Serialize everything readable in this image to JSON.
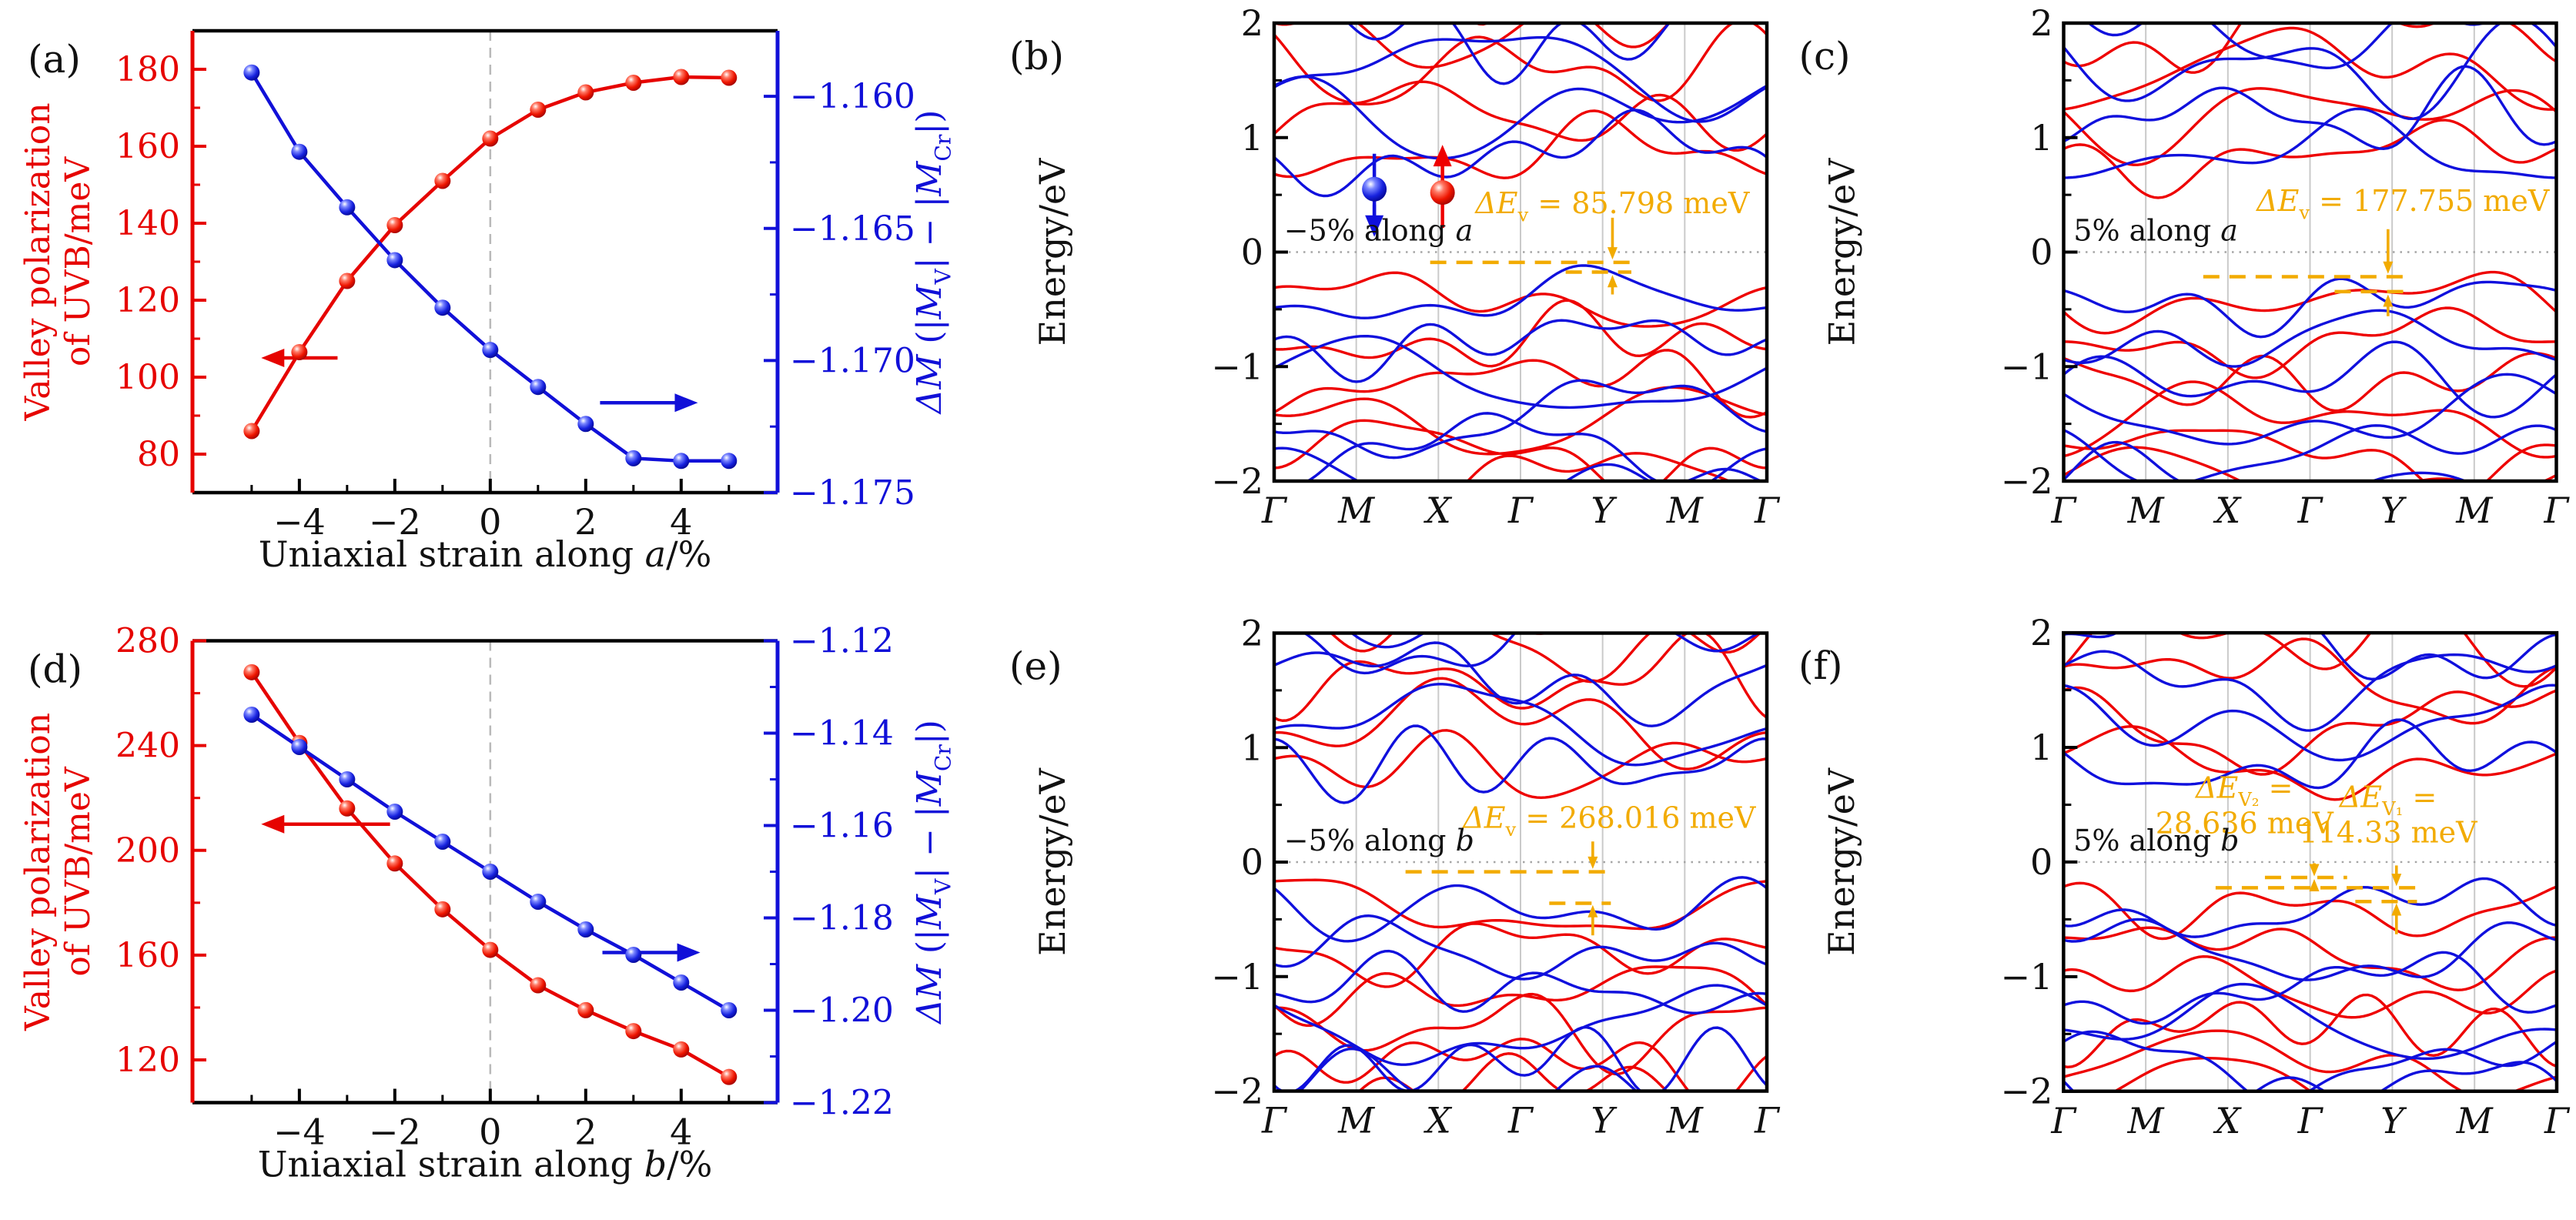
{
  "chart_data": [
    {
      "type": "line-dual-axis",
      "panel": "(a)",
      "x_axis": {
        "label_parts": [
          {
            "t": "Uniaxial strain along "
          },
          {
            "t": "a",
            "i": true
          },
          {
            "t": "/%"
          }
        ],
        "min": -6.24,
        "max": 6.02,
        "major_ticks": [
          {
            "v": -4,
            "l": "−4"
          },
          {
            "v": -2,
            "l": "−2"
          },
          {
            "v": 0,
            "l": "0"
          },
          {
            "v": 2,
            "l": "2"
          },
          {
            "v": 4,
            "l": "4"
          }
        ],
        "minor_ticks": [
          -5,
          -3,
          -1,
          1,
          3,
          5
        ],
        "dashed_zero": 0
      },
      "left_axis": {
        "title_lines": [
          "Valley polarization",
          "of UVB/meV"
        ],
        "color": "#e60300",
        "min": 70,
        "max": 190,
        "major_ticks": [
          {
            "v": 80,
            "l": "80"
          },
          {
            "v": 100,
            "l": "100"
          },
          {
            "v": 120,
            "l": "120"
          },
          {
            "v": 140,
            "l": "140"
          },
          {
            "v": 160,
            "l": "160"
          },
          {
            "v": 180,
            "l": "180"
          }
        ],
        "minor_ticks": [
          90,
          110,
          130,
          150,
          170
        ]
      },
      "right_axis": {
        "title_parts": [
          {
            "t": "ΔM",
            "i": true
          },
          {
            "t": " (|"
          },
          {
            "t": "M",
            "i": true
          },
          {
            "t": "V",
            "sub": true
          },
          {
            "t": "| − |"
          },
          {
            "t": "M",
            "i": true
          },
          {
            "t": "Cr",
            "sub": true
          },
          {
            "t": "|)"
          }
        ],
        "color": "#1110d8",
        "min": -1.175,
        "max": -1.15752,
        "major_ticks": [
          {
            "v": -1.16,
            "l": "−1.160"
          },
          {
            "v": -1.165,
            "l": "−1.165"
          },
          {
            "v": -1.17,
            "l": "−1.170"
          },
          {
            "v": -1.175,
            "l": "−1.175"
          }
        ],
        "minor_ticks": [
          -1.1625,
          -1.1675,
          -1.1725
        ]
      },
      "strain": [
        -5,
        -4,
        -3,
        -2,
        -1,
        0,
        1,
        2,
        3,
        4,
        5
      ],
      "series": [
        {
          "name": "Valley polarization of UVB",
          "axis": "left",
          "color": "#e60300",
          "values": [
            86,
            106.5,
            125,
            139.5,
            151,
            162,
            169.5,
            174,
            176.5,
            178,
            177.8
          ]
        },
        {
          "name": "ΔM (|MV| − |MCr|)",
          "axis": "right",
          "color": "#1110d8",
          "values": [
            -1.1591,
            -1.1621,
            -1.1642,
            -1.1662,
            -1.168,
            -1.1696,
            -1.171,
            -1.1724,
            -1.1737,
            -1.1738,
            -1.1738
          ]
        }
      ],
      "arrows": [
        {
          "axis": "left",
          "color": "#e60300",
          "y": 105,
          "x1": -3.2,
          "x2": -4.8
        },
        {
          "axis": "right",
          "color": "#1110d8",
          "y": -1.1716,
          "x1": 2.3,
          "x2": 4.35
        }
      ]
    },
    {
      "type": "band-structure",
      "panel": "(b)",
      "ylabel": "Energy/eV",
      "ymin": -2,
      "ymax": 2,
      "yticks": [
        {
          "v": -2,
          "l": "−2"
        },
        {
          "v": -1,
          "l": "−1"
        },
        {
          "v": 0,
          "l": "0"
        },
        {
          "v": 1,
          "l": "1"
        },
        {
          "v": 2,
          "l": "2"
        }
      ],
      "minor_yticks": [
        -1.5,
        -0.5,
        0.5,
        1.5
      ],
      "kpath": [
        "Γ",
        "M",
        "X",
        "Γ",
        "Y",
        "M",
        "Γ"
      ],
      "tag_parts": [
        {
          "t": "−5% along "
        },
        {
          "t": "a",
          "i": true
        }
      ],
      "spin_markers": [
        {
          "k": 1.22,
          "E": 0.55,
          "color": "blue",
          "dir": "down"
        },
        {
          "k": 2.05,
          "E": 0.52,
          "color": "red",
          "dir": "up"
        }
      ],
      "gold": {
        "color": "#f2ab00",
        "labels": [
          {
            "parts": [
              {
                "t": "ΔE",
                "i": true
              },
              {
                "t": "v",
                "sub": true
              },
              {
                "t": " = 85.798 meV"
              }
            ],
            "k": 2.45,
            "E": 0.34,
            "anchor": "start"
          }
        ],
        "dashes": [
          {
            "k1": 1.9,
            "k2": 4.35,
            "E": -0.09
          },
          {
            "k1": 3.55,
            "k2": 4.35,
            "E": -0.175
          }
        ],
        "arrows": [
          {
            "k": 4.12,
            "E1": 0.3,
            "E2": -0.065
          },
          {
            "k": 4.12,
            "E1": -0.37,
            "E2": -0.2
          }
        ]
      }
    },
    {
      "type": "band-structure",
      "panel": "(c)",
      "ylabel": "Energy/eV",
      "ymin": -2,
      "ymax": 2,
      "yticks": [
        {
          "v": -2,
          "l": "−2"
        },
        {
          "v": -1,
          "l": "−1"
        },
        {
          "v": 0,
          "l": "0"
        },
        {
          "v": 1,
          "l": "1"
        },
        {
          "v": 2,
          "l": "2"
        }
      ],
      "minor_yticks": [
        -1.5,
        -0.5,
        0.5,
        1.5
      ],
      "kpath": [
        "Γ",
        "M",
        "X",
        "Γ",
        "Y",
        "M",
        "Γ"
      ],
      "tag_parts": [
        {
          "t": "5% along "
        },
        {
          "t": "a",
          "i": true
        }
      ],
      "spin_markers": [],
      "gold": {
        "color": "#f2ab00",
        "labels": [
          {
            "parts": [
              {
                "t": "ΔE",
                "i": true
              },
              {
                "t": "v",
                "sub": true
              },
              {
                "t": " = 177.755 meV"
              }
            ],
            "k": 2.35,
            "E": 0.36,
            "anchor": "start"
          }
        ],
        "dashes": [
          {
            "k1": 1.7,
            "k2": 4.15,
            "E": -0.215
          },
          {
            "k1": 3.3,
            "k2": 4.15,
            "E": -0.345
          }
        ],
        "arrows": [
          {
            "k": 3.95,
            "E1": 0.2,
            "E2": -0.19
          },
          {
            "k": 3.95,
            "E1": -0.56,
            "E2": -0.37
          }
        ]
      }
    },
    {
      "type": "line-dual-axis",
      "panel": "(d)",
      "x_axis": {
        "label_parts": [
          {
            "t": "Uniaxial strain along "
          },
          {
            "t": "b",
            "i": true
          },
          {
            "t": "/%"
          }
        ],
        "min": -6.24,
        "max": 6.02,
        "major_ticks": [
          {
            "v": -4,
            "l": "−4"
          },
          {
            "v": -2,
            "l": "−2"
          },
          {
            "v": 0,
            "l": "0"
          },
          {
            "v": 2,
            "l": "2"
          },
          {
            "v": 4,
            "l": "4"
          }
        ],
        "minor_ticks": [
          -5,
          -3,
          -1,
          1,
          3,
          5
        ],
        "dashed_zero": 0
      },
      "left_axis": {
        "title_lines": [
          "Valley polarization",
          "of UVB/meV"
        ],
        "color": "#e60300",
        "min": 103.7,
        "max": 280,
        "major_ticks": [
          {
            "v": 120,
            "l": "120"
          },
          {
            "v": 160,
            "l": "160"
          },
          {
            "v": 200,
            "l": "200"
          },
          {
            "v": 240,
            "l": "240"
          },
          {
            "v": 280,
            "l": "280"
          }
        ],
        "minor_ticks": [
          140,
          180,
          220,
          260
        ]
      },
      "right_axis": {
        "title_parts": [
          {
            "t": "ΔM",
            "i": true
          },
          {
            "t": " (|"
          },
          {
            "t": "M",
            "i": true
          },
          {
            "t": "V",
            "sub": true
          },
          {
            "t": "| − |"
          },
          {
            "t": "M",
            "i": true
          },
          {
            "t": "Cr",
            "sub": true
          },
          {
            "t": "|)"
          }
        ],
        "color": "#1110d8",
        "min": -1.22,
        "max": -1.12,
        "major_ticks": [
          {
            "v": -1.12,
            "l": "−1.12"
          },
          {
            "v": -1.14,
            "l": "−1.14"
          },
          {
            "v": -1.16,
            "l": "−1.16"
          },
          {
            "v": -1.18,
            "l": "−1.18"
          },
          {
            "v": -1.2,
            "l": "−1.20"
          },
          {
            "v": -1.22,
            "l": "−1.22"
          }
        ],
        "minor_ticks": [
          -1.13,
          -1.15,
          -1.17,
          -1.19,
          -1.21
        ]
      },
      "strain": [
        -5,
        -4,
        -3,
        -2,
        -1,
        0,
        1,
        2,
        3,
        4,
        5
      ],
      "series": [
        {
          "name": "Valley polarization of UVB",
          "axis": "left",
          "color": "#e60300",
          "values": [
            268,
            241,
            216,
            195,
            177.5,
            162,
            148.5,
            139,
            131,
            124,
            113.5
          ]
        },
        {
          "name": "ΔM (|MV| − |MCr|)",
          "axis": "right",
          "color": "#1110d8",
          "values": [
            -1.136,
            -1.143,
            -1.15,
            -1.157,
            -1.1635,
            -1.17,
            -1.1765,
            -1.1825,
            -1.188,
            -1.194,
            -1.2
          ]
        }
      ],
      "arrows": [
        {
          "axis": "left",
          "color": "#e60300",
          "y": 210,
          "x1": -2.1,
          "x2": -4.8
        },
        {
          "axis": "right",
          "color": "#1110d8",
          "y": -1.1875,
          "x1": 2.35,
          "x2": 4.4
        }
      ]
    },
    {
      "type": "band-structure",
      "panel": "(e)",
      "ylabel": "Energy/eV",
      "ymin": -2,
      "ymax": 2,
      "yticks": [
        {
          "v": -2,
          "l": "−2"
        },
        {
          "v": -1,
          "l": "−1"
        },
        {
          "v": 0,
          "l": "0"
        },
        {
          "v": 1,
          "l": "1"
        },
        {
          "v": 2,
          "l": "2"
        }
      ],
      "minor_yticks": [
        -1.5,
        -0.5,
        0.5,
        1.5
      ],
      "kpath": [
        "Γ",
        "M",
        "X",
        "Γ",
        "Y",
        "M",
        "Γ"
      ],
      "tag_parts": [
        {
          "t": "−5% along "
        },
        {
          "t": "b",
          "i": true
        }
      ],
      "spin_markers": [],
      "gold": {
        "color": "#f2ab00",
        "labels": [
          {
            "parts": [
              {
                "t": "ΔE",
                "i": true
              },
              {
                "t": "v",
                "sub": true
              },
              {
                "t": " = 268.016 meV"
              }
            ],
            "k": 2.3,
            "E": 0.3,
            "anchor": "start"
          }
        ],
        "dashes": [
          {
            "k1": 1.6,
            "k2": 4.1,
            "E": -0.085
          },
          {
            "k1": 3.35,
            "k2": 4.1,
            "E": -0.36
          }
        ],
        "arrows": [
          {
            "k": 3.88,
            "E1": 0.18,
            "E2": -0.06
          },
          {
            "k": 3.88,
            "E1": -0.64,
            "E2": -0.375
          }
        ]
      }
    },
    {
      "type": "band-structure",
      "panel": "(f)",
      "ylabel": "Energy/eV",
      "ymin": -2,
      "ymax": 2,
      "yticks": [
        {
          "v": -2,
          "l": "−2"
        },
        {
          "v": -1,
          "l": "−1"
        },
        {
          "v": 0,
          "l": "0"
        },
        {
          "v": 1,
          "l": "1"
        },
        {
          "v": 2,
          "l": "2"
        }
      ],
      "minor_yticks": [
        -1.5,
        -0.5,
        0.5,
        1.5
      ],
      "kpath": [
        "Γ",
        "M",
        "X",
        "Γ",
        "Y",
        "M",
        "Γ"
      ],
      "tag_parts": [
        {
          "t": "5% along "
        },
        {
          "t": "b",
          "i": true
        }
      ],
      "spin_markers": [],
      "gold": {
        "color": "#f2ab00",
        "labels": [
          {
            "parts": [
              {
                "t": "ΔE",
                "i": true
              },
              {
                "t": "V₂",
                "sub": true
              },
              {
                "t": " ="
              }
            ],
            "line2": "28.636 meV",
            "k": 2.2,
            "E": 0.56,
            "anchor": "middle"
          },
          {
            "parts": [
              {
                "t": "ΔE",
                "i": true
              },
              {
                "t": "V₁",
                "sub": true
              },
              {
                "t": " ="
              }
            ],
            "line2": "114.33 meV",
            "k": 3.95,
            "E": 0.48,
            "anchor": "middle"
          }
        ],
        "dashes": [
          {
            "k1": 2.45,
            "k2": 3.45,
            "E": -0.135
          },
          {
            "k1": 1.85,
            "k2": 4.3,
            "E": -0.225
          },
          {
            "k1": 3.55,
            "k2": 4.3,
            "E": -0.345
          }
        ],
        "arrows": [
          {
            "k": 3.05,
            "E1": -0.01,
            "E2": -0.125
          },
          {
            "k": 3.05,
            "E1": -0.215,
            "E2": -0.148
          },
          {
            "k": 4.05,
            "E1": -0.03,
            "E2": -0.21
          },
          {
            "k": 4.05,
            "E1": -0.63,
            "E2": -0.36
          }
        ]
      }
    }
  ]
}
